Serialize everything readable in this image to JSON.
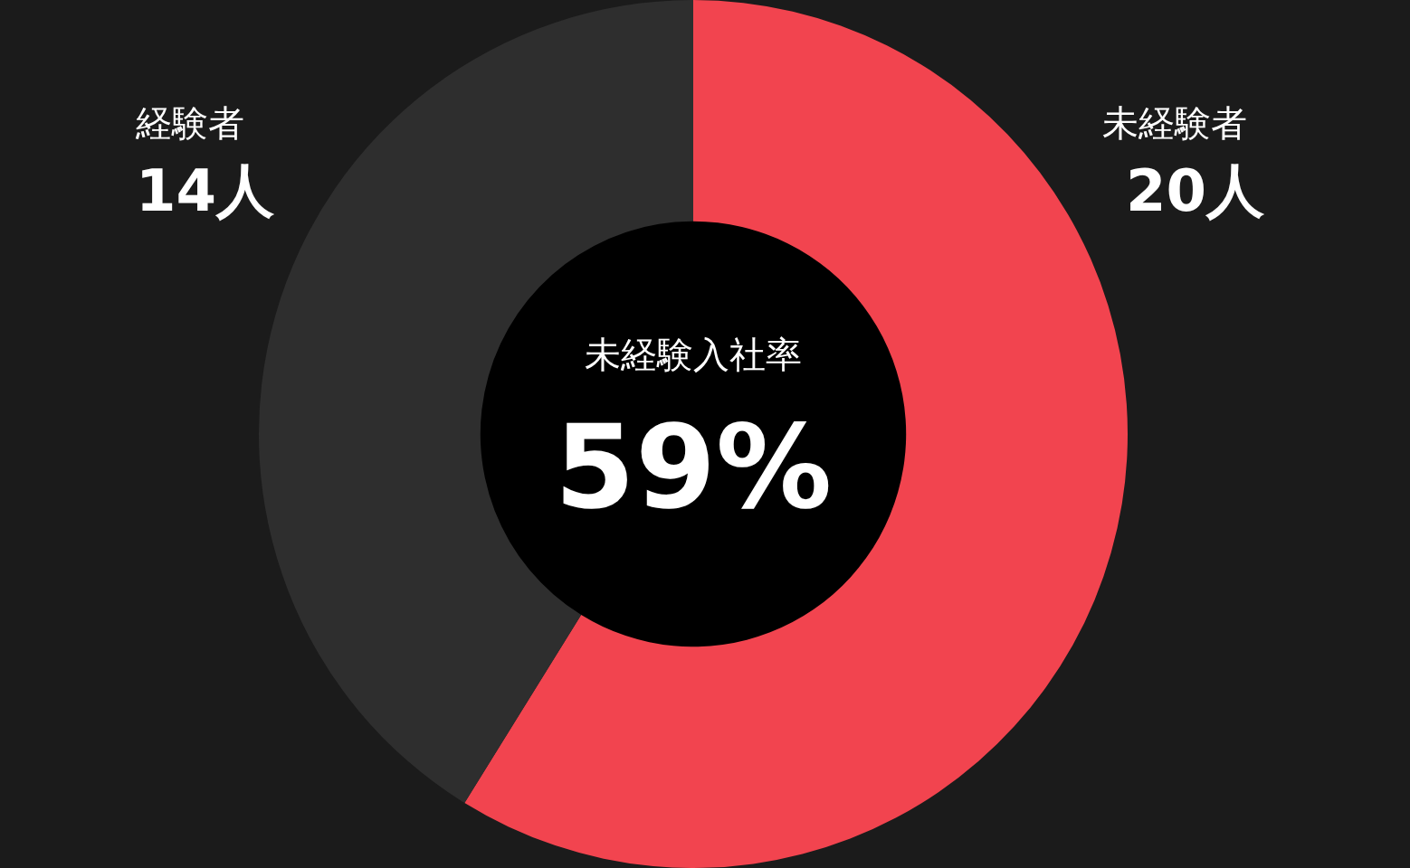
{
  "chart_data": {
    "type": "donut",
    "categories": [
      "未経験者",
      "経験者"
    ],
    "values": [
      20,
      14
    ],
    "colors": [
      "#f2444f",
      "#2e2e2e"
    ],
    "value_labels": [
      "20人",
      "14人"
    ],
    "annotations": [
      "未経験入社率",
      "59%"
    ]
  }
}
